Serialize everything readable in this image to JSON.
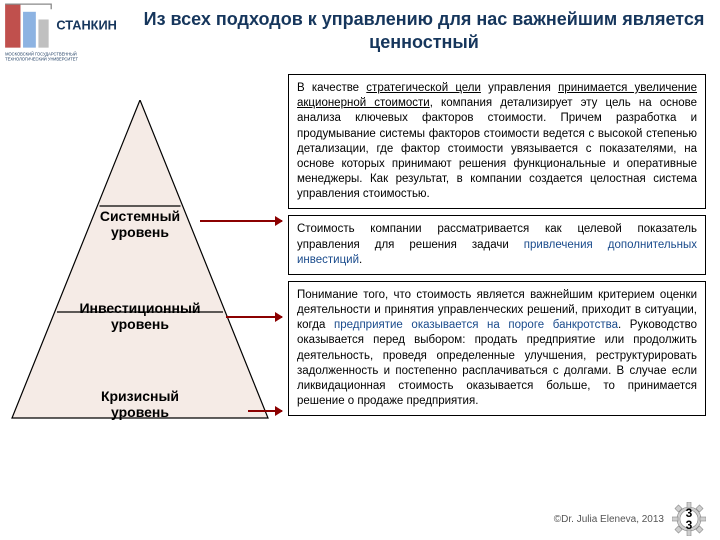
{
  "header": {
    "title": "Из всех подходов к управлению для нас важнейшим является ценностный",
    "logo_text_top": "СТАНКИН",
    "logo_text_bottom": "МОСКОВСКИЙ ГОСУДАРСТВЕННЫЙ ТЕХНОЛОГИЧЕСКИЙ УНИВЕРСИТЕТ"
  },
  "pyramid": {
    "fill": "#f5ebe6",
    "stroke": "#000000",
    "levels": [
      {
        "label_line1": "Системный",
        "label_line2": "уровень"
      },
      {
        "label_line1": "Инвестиционный",
        "label_line2": "уровень"
      },
      {
        "label_line1": "Кризисный",
        "label_line2": "уровень"
      }
    ]
  },
  "arrows": {
    "color": "#8b0000"
  },
  "blocks": [
    {
      "html": "В качестве <span class='ul'>стратегической цели</span> управления <span class='ul'>принимается увеличение акционерной стоимости</span>, компания детализирует эту цель на основе анализа ключевых факторов стоимости. Причем разработка и продумывание системы факторов стоимости ведется с высокой степенью детализации, где фактор стоимости увязывается с показателями, на основе которых принимают решения функциональные и оперативные менеджеры. Как результат, в компании создается целостная система управления стоимостью."
    },
    {
      "html": "Стоимость компании рассматривается как целевой показатель управления для решения задачи <span class='blue'>привлечения дополнительных инвестиций</span>."
    },
    {
      "html": "Понимание того, что стоимость является важнейшим критерием оценки деятельности и принятия управленческих решений, приходит в ситуации, когда <span class='blue'>предприятие оказывается на пороге банкротства</span>. Руководство оказывается перед выбором: продать предприятие или продолжить деятельность, проведя определенные улучшения, реструктурировать задолженность и постепенно расплачиваться с долгами. В случае если ликвидационная стоимость оказывается больше, то принимается решение о продаже предприятия."
    }
  ],
  "footer": {
    "copyright": "©Dr. Julia Eleneva, 2013",
    "page_a": "3",
    "page_b": "3"
  },
  "colors": {
    "header_text": "#16365c",
    "band": "#1a4b8c",
    "border": "#000000",
    "accent_blue": "#1a4b8c"
  }
}
